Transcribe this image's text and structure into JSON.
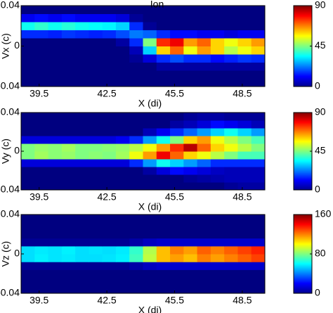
{
  "chart_data": [
    {
      "type": "heatmap",
      "title": "Ion",
      "xlabel": "X (di)",
      "ylabel": "Vx (c)",
      "colormap": "jet",
      "x": [
        39.0,
        39.6,
        40.2,
        40.8,
        41.4,
        42.0,
        42.6,
        43.2,
        43.8,
        44.4,
        45.0,
        45.6,
        46.2,
        46.8,
        47.4,
        48.0,
        48.6,
        49.2
      ],
      "y": [
        -0.036,
        -0.028,
        -0.02,
        -0.012,
        -0.004,
        0.004,
        0.012,
        0.02,
        0.028,
        0.036
      ],
      "values": [
        [
          0,
          0,
          0,
          0,
          0,
          0,
          0,
          0,
          0,
          0,
          0,
          0,
          0,
          0,
          0,
          0,
          0,
          0
        ],
        [
          0,
          0,
          0,
          0,
          0,
          0,
          0,
          0,
          0,
          0,
          0,
          0,
          0,
          0,
          0,
          0,
          0,
          0
        ],
        [
          0,
          0,
          0,
          0,
          0,
          0,
          0,
          0,
          0,
          0,
          3,
          3,
          3,
          3,
          3,
          3,
          3,
          3
        ],
        [
          0,
          0,
          0,
          0,
          0,
          0,
          0,
          0,
          2,
          8,
          15,
          18,
          15,
          15,
          12,
          14,
          16,
          15
        ],
        [
          0,
          0,
          0,
          0,
          0,
          0,
          0,
          0,
          5,
          30,
          60,
          70,
          55,
          65,
          60,
          50,
          55,
          60
        ],
        [
          0,
          0,
          0,
          0,
          0,
          0,
          0,
          3,
          15,
          45,
          75,
          80,
          65,
          70,
          60,
          55,
          60,
          65
        ],
        [
          15,
          15,
          14,
          16,
          15,
          14,
          15,
          18,
          22,
          20,
          15,
          12,
          12,
          10,
          10,
          8,
          10,
          10
        ],
        [
          35,
          38,
          35,
          37,
          35,
          34,
          33,
          30,
          15,
          2,
          0,
          0,
          0,
          0,
          0,
          0,
          0,
          0
        ],
        [
          10,
          12,
          10,
          12,
          10,
          10,
          10,
          8,
          2,
          0,
          0,
          0,
          0,
          0,
          0,
          0,
          0,
          0
        ],
        [
          0,
          0,
          0,
          0,
          0,
          0,
          0,
          0,
          0,
          0,
          0,
          0,
          0,
          0,
          0,
          0,
          0,
          0
        ]
      ],
      "xlim": [
        38.7,
        49.5
      ],
      "xticks": [
        39.5,
        42.5,
        45.5,
        48.5
      ],
      "ylim": [
        -0.04,
        0.04
      ],
      "yticks": [
        -0.04,
        0,
        0.04
      ],
      "clim": [
        0,
        90
      ],
      "cticks": [
        0,
        45,
        90
      ]
    },
    {
      "type": "heatmap",
      "xlabel": "X (di)",
      "ylabel": "Vy (c)",
      "colormap": "jet",
      "x": [
        39.0,
        39.6,
        40.2,
        40.8,
        41.4,
        42.0,
        42.6,
        43.2,
        43.8,
        44.4,
        45.0,
        45.6,
        46.2,
        46.8,
        47.4,
        48.0,
        48.6,
        49.2
      ],
      "y": [
        -0.036,
        -0.028,
        -0.02,
        -0.012,
        -0.004,
        0.004,
        0.012,
        0.02,
        0.028,
        0.036
      ],
      "values": [
        [
          0,
          0,
          0,
          0,
          0,
          0,
          0,
          0,
          0,
          0,
          0,
          0,
          0,
          0,
          0,
          2,
          3,
          3
        ],
        [
          0,
          0,
          0,
          0,
          0,
          0,
          0,
          0,
          0,
          0,
          0,
          0,
          2,
          3,
          4,
          5,
          5,
          5
        ],
        [
          0,
          0,
          0,
          0,
          0,
          0,
          0,
          0,
          0,
          3,
          8,
          12,
          10,
          8,
          6,
          5,
          5,
          5
        ],
        [
          8,
          8,
          8,
          8,
          8,
          8,
          8,
          8,
          15,
          25,
          35,
          30,
          25,
          20,
          15,
          15,
          15,
          15
        ],
        [
          45,
          48,
          46,
          47,
          45,
          46,
          45,
          48,
          55,
          65,
          80,
          70,
          60,
          55,
          50,
          45,
          40,
          40
        ],
        [
          45,
          47,
          46,
          48,
          45,
          45,
          46,
          47,
          50,
          55,
          65,
          75,
          85,
          70,
          60,
          55,
          50,
          45
        ],
        [
          8,
          8,
          8,
          8,
          8,
          8,
          8,
          10,
          15,
          25,
          35,
          45,
          60,
          65,
          55,
          50,
          45,
          40
        ],
        [
          0,
          0,
          0,
          0,
          0,
          0,
          0,
          0,
          0,
          5,
          10,
          15,
          20,
          25,
          30,
          35,
          30,
          25
        ],
        [
          0,
          0,
          0,
          0,
          0,
          0,
          0,
          0,
          0,
          0,
          0,
          3,
          5,
          8,
          12,
          10,
          8,
          5
        ],
        [
          0,
          0,
          0,
          0,
          0,
          0,
          0,
          0,
          0,
          0,
          0,
          0,
          2,
          3,
          3,
          2,
          2,
          2
        ]
      ],
      "xlim": [
        38.7,
        49.5
      ],
      "xticks": [
        39.5,
        42.5,
        45.5,
        48.5
      ],
      "ylim": [
        -0.04,
        0.04
      ],
      "yticks": [
        -0.04,
        0,
        0.04
      ],
      "clim": [
        0,
        90
      ],
      "cticks": [
        0,
        45,
        90
      ]
    },
    {
      "type": "heatmap",
      "xlabel": "X (di)",
      "ylabel": "Vz (c)",
      "colormap": "jet",
      "x": [
        39.0,
        39.6,
        40.2,
        40.8,
        41.4,
        42.0,
        42.6,
        43.2,
        43.8,
        44.4,
        45.0,
        45.6,
        46.2,
        46.8,
        47.4,
        48.0,
        48.6,
        49.2
      ],
      "y": [
        -0.036,
        -0.028,
        -0.02,
        -0.012,
        -0.004,
        0.004,
        0.012,
        0.02,
        0.028,
        0.036
      ],
      "values": [
        [
          0,
          0,
          0,
          0,
          0,
          0,
          0,
          0,
          0,
          0,
          0,
          0,
          0,
          0,
          0,
          0,
          0,
          0
        ],
        [
          0,
          0,
          0,
          0,
          0,
          0,
          0,
          0,
          0,
          0,
          0,
          0,
          0,
          0,
          0,
          0,
          0,
          0
        ],
        [
          0,
          0,
          0,
          0,
          0,
          0,
          0,
          0,
          0,
          0,
          0,
          0,
          0,
          0,
          0,
          0,
          0,
          0
        ],
        [
          3,
          3,
          3,
          3,
          3,
          3,
          3,
          3,
          6,
          10,
          12,
          12,
          12,
          12,
          12,
          12,
          12,
          12
        ],
        [
          55,
          58,
          56,
          57,
          55,
          55,
          56,
          58,
          70,
          90,
          110,
          115,
          110,
          120,
          115,
          120,
          125,
          130
        ],
        [
          55,
          57,
          56,
          58,
          55,
          56,
          55,
          57,
          68,
          88,
          110,
          120,
          115,
          125,
          120,
          125,
          130,
          135
        ],
        [
          3,
          3,
          3,
          3,
          3,
          3,
          3,
          3,
          6,
          10,
          12,
          12,
          12,
          12,
          12,
          12,
          12,
          12
        ],
        [
          0,
          0,
          0,
          0,
          0,
          0,
          0,
          0,
          0,
          0,
          0,
          0,
          0,
          0,
          0,
          0,
          0,
          0
        ],
        [
          0,
          0,
          0,
          0,
          0,
          0,
          0,
          0,
          0,
          0,
          0,
          0,
          0,
          0,
          0,
          0,
          0,
          0
        ],
        [
          0,
          0,
          0,
          0,
          0,
          0,
          0,
          0,
          0,
          0,
          0,
          0,
          0,
          0,
          0,
          0,
          0,
          0
        ]
      ],
      "xlim": [
        38.7,
        49.5
      ],
      "xticks": [
        39.5,
        42.5,
        45.5,
        48.5
      ],
      "ylim": [
        -0.04,
        0.04
      ],
      "yticks": [
        -0.04,
        0,
        0.04
      ],
      "clim": [
        0,
        160
      ],
      "cticks": [
        0,
        80,
        160
      ]
    }
  ]
}
